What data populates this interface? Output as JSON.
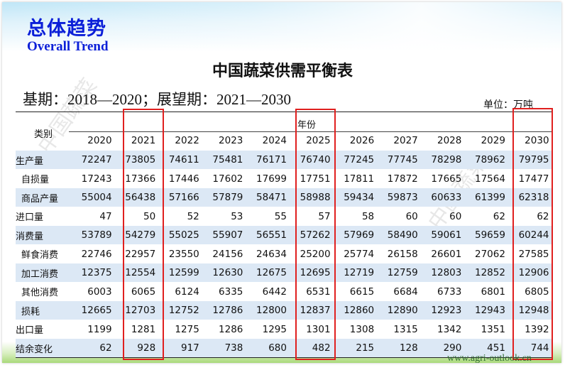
{
  "heading": {
    "title_cn": "总体趋势",
    "title_en": "Overall Trend"
  },
  "table_title": "中国蔬菜供需平衡表",
  "period_text": "基期：2018—2020；展望期：2021—2030",
  "unit_text": "单位：万吨",
  "watermark_text": "中国蔬菜",
  "site_text": "www.agri-outlook.cn",
  "table": {
    "category_header": "类别",
    "year_group_header": "年份",
    "years": [
      "2020",
      "2021",
      "2022",
      "2023",
      "2024",
      "2025",
      "2026",
      "2027",
      "2028",
      "2029",
      "2030"
    ],
    "highlighted_years": [
      "2021",
      "2025",
      "2030"
    ],
    "highlight_color": "#e0201f",
    "shade_color": "#dce8f5",
    "rows": [
      {
        "label": "生产量",
        "indent": false,
        "values": [
          "72247",
          "73805",
          "74611",
          "75481",
          "76171",
          "76740",
          "77245",
          "77745",
          "78298",
          "78962",
          "79795"
        ]
      },
      {
        "label": "自损量",
        "indent": true,
        "values": [
          "17243",
          "17366",
          "17446",
          "17602",
          "17699",
          "17751",
          "17811",
          "17872",
          "17665",
          "17564",
          "17477"
        ]
      },
      {
        "label": "商品产量",
        "indent": true,
        "values": [
          "55004",
          "56438",
          "57166",
          "57879",
          "58471",
          "58988",
          "59434",
          "59873",
          "60633",
          "61399",
          "62318"
        ]
      },
      {
        "label": "进口量",
        "indent": false,
        "values": [
          "47",
          "50",
          "52",
          "53",
          "55",
          "57",
          "58",
          "60",
          "60",
          "62",
          "62"
        ]
      },
      {
        "label": "消费量",
        "indent": false,
        "values": [
          "53789",
          "54279",
          "55025",
          "55907",
          "56551",
          "57262",
          "57969",
          "58490",
          "59061",
          "59659",
          "60244"
        ]
      },
      {
        "label": "鲜食消费",
        "indent": true,
        "values": [
          "22746",
          "22957",
          "23550",
          "24156",
          "24634",
          "25200",
          "25774",
          "26158",
          "26601",
          "27062",
          "27585"
        ]
      },
      {
        "label": "加工消费",
        "indent": true,
        "values": [
          "12375",
          "12554",
          "12599",
          "12630",
          "12675",
          "12695",
          "12719",
          "12759",
          "12803",
          "12852",
          "12906"
        ]
      },
      {
        "label": "其他消费",
        "indent": true,
        "values": [
          "6003",
          "6065",
          "6124",
          "6335",
          "6442",
          "6531",
          "6615",
          "6684",
          "6733",
          "6801",
          "6805"
        ]
      },
      {
        "label": "损耗",
        "indent": true,
        "values": [
          "12665",
          "12703",
          "12752",
          "12786",
          "12800",
          "12837",
          "12860",
          "12890",
          "12923",
          "12943",
          "12948"
        ]
      },
      {
        "label": "出口量",
        "indent": false,
        "values": [
          "1199",
          "1281",
          "1275",
          "1286",
          "1295",
          "1301",
          "1308",
          "1315",
          "1342",
          "1351",
          "1392"
        ]
      },
      {
        "label": "结余变化",
        "indent": false,
        "values": [
          "62",
          "928",
          "917",
          "738",
          "680",
          "482",
          "215",
          "128",
          "290",
          "451",
          "744"
        ]
      }
    ]
  },
  "colors": {
    "heading": "#0b1fd8",
    "text": "#111111",
    "site": "#2f6b2f"
  }
}
